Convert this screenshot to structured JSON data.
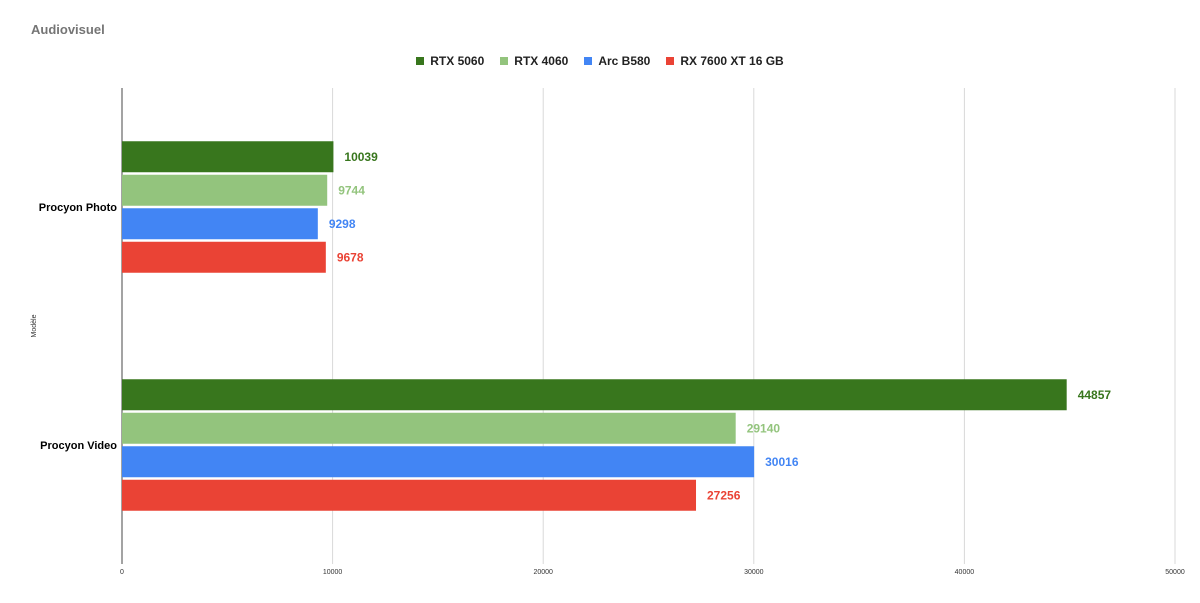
{
  "chart_data": {
    "type": "bar",
    "orientation": "horizontal",
    "title": "Audiovisuel",
    "ylabel": "Modèle",
    "xlabel": "",
    "categories": [
      "Procyon Photo",
      "Procyon Video"
    ],
    "series": [
      {
        "name": "RTX 5060",
        "color": "#38761d",
        "values": [
          10039,
          44857
        ]
      },
      {
        "name": "RTX 4060",
        "color": "#93c47d",
        "values": [
          9744,
          29140
        ]
      },
      {
        "name": "Arc B580",
        "color": "#4285f4",
        "values": [
          9298,
          30016
        ]
      },
      {
        "name": "RX 7600 XT 16 GB",
        "color": "#ea4335",
        "values": [
          9678,
          27256
        ]
      }
    ],
    "xlim": [
      0,
      50000
    ],
    "xticks": [
      0,
      10000,
      20000,
      30000,
      40000,
      50000
    ],
    "grid": true,
    "legend_position": "top-center"
  }
}
